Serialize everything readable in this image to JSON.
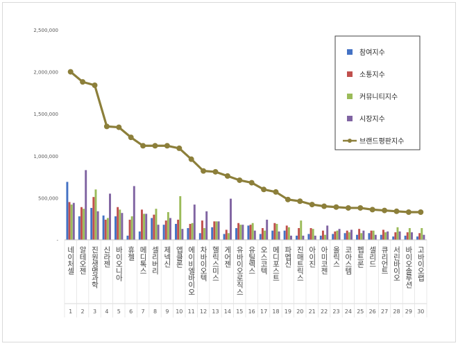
{
  "chart_data": {
    "type": "bar",
    "title": "",
    "xlabel": "",
    "ylabel": "",
    "ylim": [
      0,
      2500000
    ],
    "yticks": [
      "-",
      "500,000",
      "1,000,000",
      "1,500,000",
      "2,000,000",
      "2,500,000"
    ],
    "grid": false,
    "legend_position": "top-right",
    "indices": [
      "1",
      "2",
      "3",
      "4",
      "5",
      "6",
      "7",
      "8",
      "9",
      "10",
      "11",
      "12",
      "13",
      "14",
      "15",
      "16",
      "17",
      "18",
      "19",
      "20",
      "21",
      "22",
      "23",
      "24",
      "25",
      "26",
      "27",
      "28",
      "29",
      "30"
    ],
    "categories": [
      "네이처셀",
      "알테오젠",
      "진원생명과학",
      "신라젠",
      "바이오니아",
      "휴젤",
      "메디톡스",
      "셀리버리",
      "제넥신",
      "앱클론",
      "에이비엘바이오",
      "차바이오텍",
      "헬릭스미스",
      "게어젠",
      "유바이오로직스",
      "유틸렉스",
      "오스코텍",
      "메디포스트",
      "파멥신",
      "진매트릭스",
      "아이진",
      "아미코젠",
      "올릭스",
      "코아스템",
      "펩트론",
      "셀리드",
      "큐리언트",
      "서린바이오",
      "바이오솔루션",
      "고바이오랩"
    ],
    "series": [
      {
        "name": "참여지수",
        "color": "#4472C4",
        "values": [
          690000,
          280000,
          380000,
          290000,
          280000,
          50000,
          100000,
          260000,
          180000,
          190000,
          140000,
          80000,
          150000,
          70000,
          140000,
          170000,
          70000,
          110000,
          110000,
          50000,
          70000,
          50000,
          70000,
          80000,
          60000,
          80000,
          60000,
          40000,
          50000,
          40000
        ]
      },
      {
        "name": "소통지수",
        "color": "#C0504D",
        "values": [
          450000,
          390000,
          510000,
          240000,
          390000,
          240000,
          360000,
          300000,
          230000,
          240000,
          190000,
          230000,
          220000,
          120000,
          200000,
          180000,
          140000,
          200000,
          170000,
          140000,
          140000,
          110000,
          100000,
          110000,
          130000,
          110000,
          120000,
          90000,
          90000,
          80000
        ]
      },
      {
        "name": "커뮤니티지수",
        "color": "#9BBB59",
        "values": [
          420000,
          370000,
          600000,
          260000,
          360000,
          280000,
          310000,
          370000,
          330000,
          520000,
          200000,
          140000,
          220000,
          80000,
          180000,
          200000,
          110000,
          190000,
          150000,
          230000,
          130000,
          60000,
          110000,
          90000,
          80000,
          110000,
          90000,
          150000,
          140000,
          140000
        ]
      },
      {
        "name": "시장지수",
        "color": "#8064A2",
        "values": [
          440000,
          830000,
          340000,
          550000,
          320000,
          640000,
          310000,
          180000,
          260000,
          130000,
          420000,
          340000,
          220000,
          490000,
          180000,
          110000,
          240000,
          100000,
          50000,
          50000,
          50000,
          170000,
          130000,
          120000,
          110000,
          60000,
          100000,
          100000,
          90000,
          60000
        ]
      },
      {
        "name": "브랜드평판지수",
        "color": "#8C7F3A",
        "kind": "line",
        "values": [
          2000000,
          1880000,
          1840000,
          1350000,
          1340000,
          1220000,
          1120000,
          1120000,
          1120000,
          1090000,
          960000,
          820000,
          810000,
          760000,
          710000,
          680000,
          600000,
          570000,
          480000,
          460000,
          420000,
          400000,
          390000,
          380000,
          380000,
          360000,
          350000,
          340000,
          330000,
          330000
        ]
      }
    ]
  }
}
